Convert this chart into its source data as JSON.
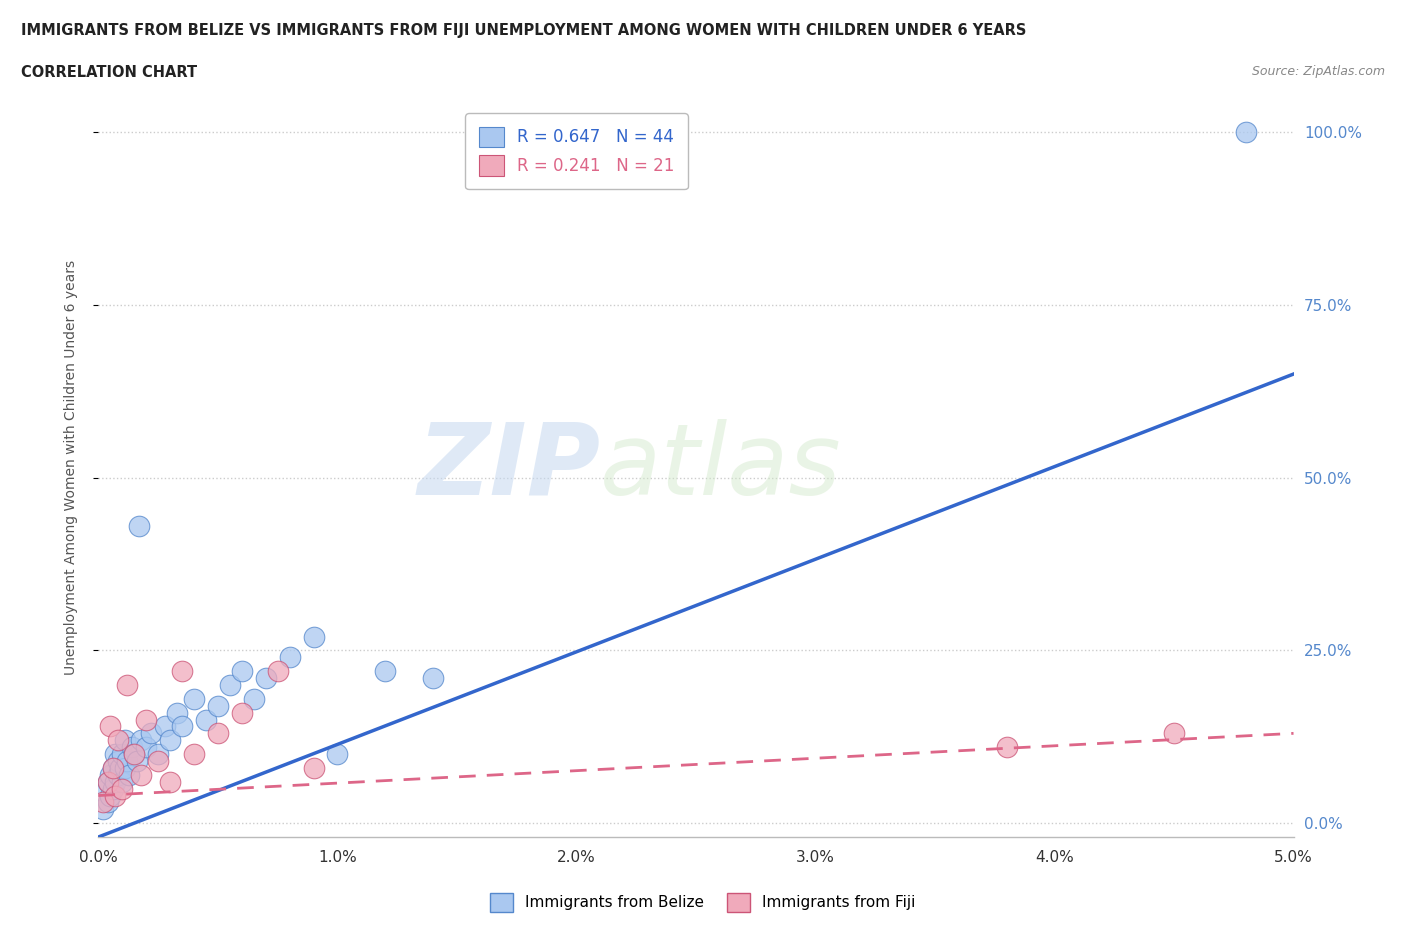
{
  "title_line1": "IMMIGRANTS FROM BELIZE VS IMMIGRANTS FROM FIJI UNEMPLOYMENT AMONG WOMEN WITH CHILDREN UNDER 6 YEARS",
  "title_line2": "CORRELATION CHART",
  "source": "Source: ZipAtlas.com",
  "ylabel": "Unemployment Among Women with Children Under 6 years",
  "xlim": [
    0.0,
    0.05
  ],
  "ylim": [
    -0.02,
    1.05
  ],
  "yticks": [
    0.0,
    0.25,
    0.5,
    0.75,
    1.0
  ],
  "ytick_labels": [
    "0.0%",
    "25.0%",
    "50.0%",
    "75.0%",
    "100.0%"
  ],
  "xticks": [
    0.0,
    0.01,
    0.02,
    0.03,
    0.04,
    0.05
  ],
  "xtick_labels": [
    "0.0%",
    "1.0%",
    "2.0%",
    "3.0%",
    "4.0%",
    "5.0%"
  ],
  "belize_color": "#aac8f0",
  "fiji_color": "#f0aabb",
  "belize_edge_color": "#5588cc",
  "fiji_edge_color": "#cc5577",
  "belize_line_color": "#3366cc",
  "fiji_line_color": "#dd6688",
  "R_belize": 0.647,
  "N_belize": 44,
  "R_fiji": 0.241,
  "N_fiji": 21,
  "background_color": "#ffffff",
  "grid_color": "#cccccc",
  "watermark_zip": "ZIP",
  "watermark_atlas": "atlas",
  "belize_scatter_x": [
    0.0002,
    0.0003,
    0.0004,
    0.0004,
    0.0005,
    0.0005,
    0.0006,
    0.0006,
    0.0007,
    0.0007,
    0.0008,
    0.0008,
    0.0009,
    0.001,
    0.001,
    0.0011,
    0.0011,
    0.0012,
    0.0013,
    0.0014,
    0.0015,
    0.0016,
    0.0017,
    0.0018,
    0.002,
    0.0022,
    0.0025,
    0.0028,
    0.003,
    0.0033,
    0.0035,
    0.004,
    0.0045,
    0.005,
    0.0055,
    0.006,
    0.0065,
    0.007,
    0.008,
    0.009,
    0.01,
    0.012,
    0.014,
    0.048
  ],
  "belize_scatter_y": [
    0.02,
    0.05,
    0.03,
    0.06,
    0.04,
    0.07,
    0.05,
    0.08,
    0.06,
    0.1,
    0.07,
    0.09,
    0.08,
    0.06,
    0.1,
    0.08,
    0.12,
    0.09,
    0.07,
    0.11,
    0.1,
    0.09,
    0.43,
    0.12,
    0.11,
    0.13,
    0.1,
    0.14,
    0.12,
    0.16,
    0.14,
    0.18,
    0.15,
    0.17,
    0.2,
    0.22,
    0.18,
    0.21,
    0.24,
    0.27,
    0.1,
    0.22,
    0.21,
    1.0
  ],
  "fiji_scatter_x": [
    0.0002,
    0.0004,
    0.0005,
    0.0006,
    0.0007,
    0.0008,
    0.001,
    0.0012,
    0.0015,
    0.0018,
    0.002,
    0.0025,
    0.003,
    0.0035,
    0.004,
    0.005,
    0.006,
    0.0075,
    0.009,
    0.038,
    0.045
  ],
  "fiji_scatter_y": [
    0.03,
    0.06,
    0.14,
    0.08,
    0.04,
    0.12,
    0.05,
    0.2,
    0.1,
    0.07,
    0.15,
    0.09,
    0.06,
    0.22,
    0.1,
    0.13,
    0.16,
    0.22,
    0.08,
    0.11,
    0.13
  ],
  "belize_line_x0": 0.0,
  "belize_line_y0": -0.02,
  "belize_line_x1": 0.05,
  "belize_line_y1": 0.65,
  "fiji_line_x0": 0.0,
  "fiji_line_y0": 0.04,
  "fiji_line_x1": 0.05,
  "fiji_line_y1": 0.13
}
